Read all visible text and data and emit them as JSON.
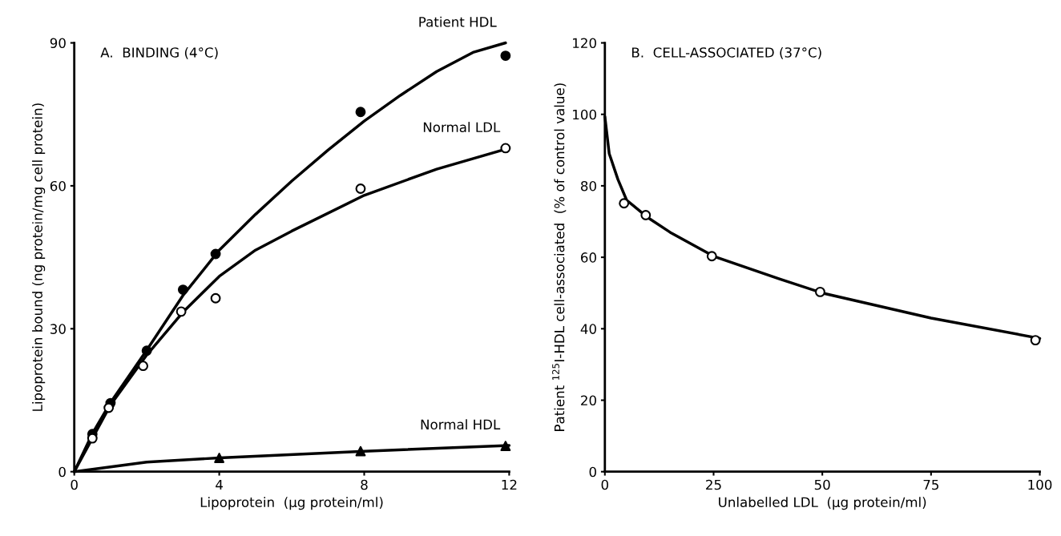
{
  "chart_data": [
    {
      "type": "scatter",
      "title": "A.  BINDING (4°C)",
      "xlabel": "Lipoprotein  (µg protein/ml)",
      "ylabel": "Lipoprotein bound (ng protein/mg cell protein)",
      "xlim": [
        0,
        12
      ],
      "ylim": [
        0,
        90
      ],
      "xticks": [
        0,
        4,
        8,
        12
      ],
      "yticks": [
        0,
        30,
        60,
        90
      ],
      "grid": false,
      "legend": false,
      "series": [
        {
          "type": "line",
          "name": "Patient HDL",
          "color": "#000000",
          "x": [
            0,
            0.5,
            1,
            2,
            3,
            4,
            5,
            6,
            7,
            8,
            9,
            10,
            11,
            11.9
          ],
          "values": [
            0,
            8,
            14.5,
            25.5,
            37,
            46.5,
            54,
            61,
            67.5,
            73.6,
            79,
            84,
            88,
            90
          ]
        },
        {
          "type": "line",
          "name": "Normal LDL",
          "color": "#000000",
          "x": [
            0,
            1,
            2,
            3,
            4,
            5,
            6,
            8,
            10,
            12
          ],
          "values": [
            0,
            14,
            24.5,
            33.5,
            41,
            46.5,
            50.5,
            58,
            63.5,
            67.9
          ]
        },
        {
          "type": "line",
          "name": "Normal HDL",
          "color": "#000000",
          "x": [
            0,
            1,
            2,
            4,
            8,
            12
          ],
          "values": [
            0,
            1,
            2,
            2.9,
            4.3,
            5.5
          ]
        },
        {
          "marker": "circle",
          "color": "#000000",
          "x": [
            0.5,
            1,
            2,
            3,
            3.9,
            7.9,
            11.9
          ],
          "values": [
            7.9,
            14.4,
            25.4,
            38.2,
            45.7,
            75.5,
            87.3
          ]
        },
        {
          "marker": "circle",
          "color": "#ffffff",
          "x": [
            0.5,
            0.95,
            1.9,
            2.95,
            3.9,
            7.9,
            11.9
          ],
          "values": [
            7.0,
            13.4,
            22.2,
            33.6,
            36.4,
            59.4,
            67.9
          ]
        },
        {
          "marker": "triangle",
          "color": "#000000",
          "x": [
            4,
            7.9,
            11.9
          ],
          "values": [
            2.9,
            4.3,
            5.4
          ]
        }
      ]
    },
    {
      "type": "scatter",
      "title": "B.  CELL-ASSOCIATED (37°C)",
      "xlabel": "Unlabelled LDL  (µg protein/ml)",
      "ylabel": "Patient $^{125}$I-HDL cell-associated  (% of control value)",
      "xlim": [
        0,
        100
      ],
      "ylim": [
        0,
        120
      ],
      "xticks": [
        0,
        25,
        50,
        75,
        100
      ],
      "yticks": [
        0,
        20,
        40,
        60,
        80,
        100,
        120
      ],
      "grid": false,
      "legend": false,
      "series": [
        {
          "type": "line",
          "color": "#000000",
          "x": [
            0,
            1,
            3,
            5,
            10,
            15,
            25,
            40,
            50,
            75,
            100
          ],
          "values": [
            99.4,
            89,
            81.8,
            76,
            71,
            67,
            60.3,
            54,
            50,
            43,
            37.3
          ]
        },
        {
          "marker": "circle",
          "color": "#ffffff",
          "x": [
            4.4,
            9.4,
            24.6,
            49.5,
            99
          ],
          "values": [
            75.1,
            71.8,
            60.3,
            50.3,
            36.8
          ]
        }
      ]
    }
  ]
}
